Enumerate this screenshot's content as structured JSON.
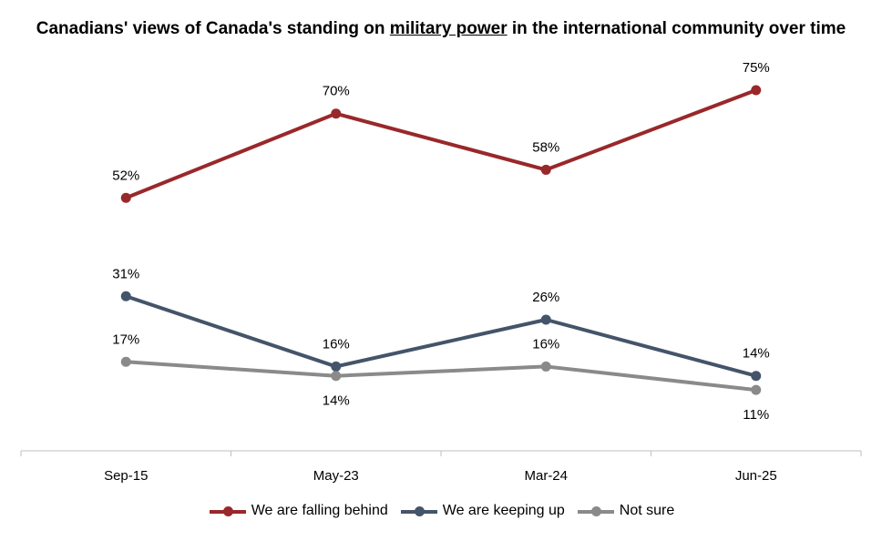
{
  "chart_data": {
    "type": "line",
    "title_parts": [
      "Canadians' views of Canada's standing on ",
      "military power",
      " in the international community over time"
    ],
    "categories": [
      "Sep-15",
      "May-23",
      "Mar-24",
      "Jun-25"
    ],
    "series": [
      {
        "name": "We are falling behind",
        "color": "#99282A",
        "values": [
          52,
          70,
          58,
          75
        ],
        "labels": [
          "52%",
          "70%",
          "58%",
          "75%"
        ],
        "label_pos": [
          "above",
          "above",
          "above",
          "above"
        ]
      },
      {
        "name": "We are keeping up",
        "color": "#44546A",
        "values": [
          31,
          16,
          26,
          14
        ],
        "labels": [
          "31%",
          "16%",
          "26%",
          "14%"
        ],
        "label_pos": [
          "above",
          "above",
          "above",
          "above"
        ]
      },
      {
        "name": "Not sure",
        "color": "#8A8A8A",
        "values": [
          17,
          14,
          16,
          11
        ],
        "labels": [
          "17%",
          "14%",
          "16%",
          "11%"
        ],
        "label_pos": [
          "above",
          "below",
          "above",
          "below"
        ]
      }
    ],
    "ylim": [
      -2,
      82
    ],
    "grid": false,
    "legend_position": "bottom"
  }
}
